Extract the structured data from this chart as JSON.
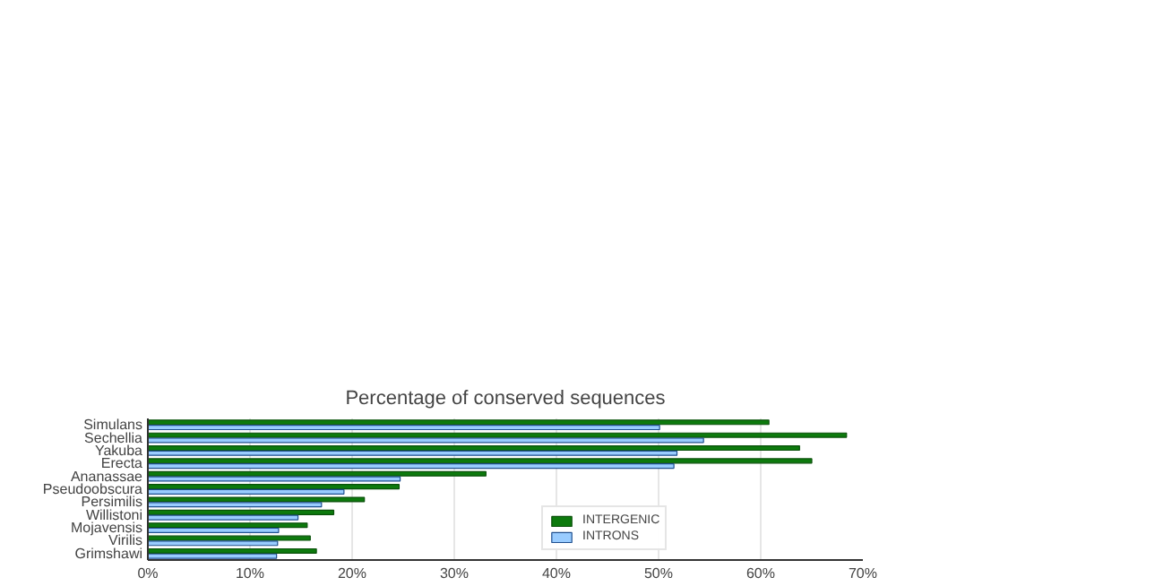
{
  "chart_data": {
    "type": "bar",
    "orientation": "horizontal",
    "title": "Percentage of conserved sequences",
    "categories": [
      "Simulans",
      "Sechellia",
      "Yakuba",
      "Erecta",
      "Ananassae",
      "Pseudoobscura",
      "Persimilis",
      "Willistoni",
      "Mojavensis",
      "Virilis",
      "Grimshawi"
    ],
    "series": [
      {
        "name": "INTERGENIC",
        "color": "#0d7a0d",
        "values": [
          60.8,
          68.4,
          63.8,
          65.0,
          33.1,
          24.6,
          21.2,
          18.2,
          15.6,
          15.9,
          16.5
        ]
      },
      {
        "name": "INTRONS",
        "color": "#99ccff",
        "values": [
          50.1,
          54.4,
          51.8,
          51.5,
          24.7,
          19.2,
          17.0,
          14.7,
          12.8,
          12.7,
          12.6
        ]
      }
    ],
    "xlim": [
      0,
      70
    ],
    "xticks": [
      {
        "value": 0,
        "label": "0%"
      },
      {
        "value": 10,
        "label": "10%"
      },
      {
        "value": 20,
        "label": "20%"
      },
      {
        "value": 30,
        "label": "30%"
      },
      {
        "value": 40,
        "label": "40%"
      },
      {
        "value": 50,
        "label": "50%"
      },
      {
        "value": 60,
        "label": "60%"
      },
      {
        "value": 70,
        "label": "70%"
      }
    ],
    "grid": "x",
    "legend": "bottom right"
  }
}
